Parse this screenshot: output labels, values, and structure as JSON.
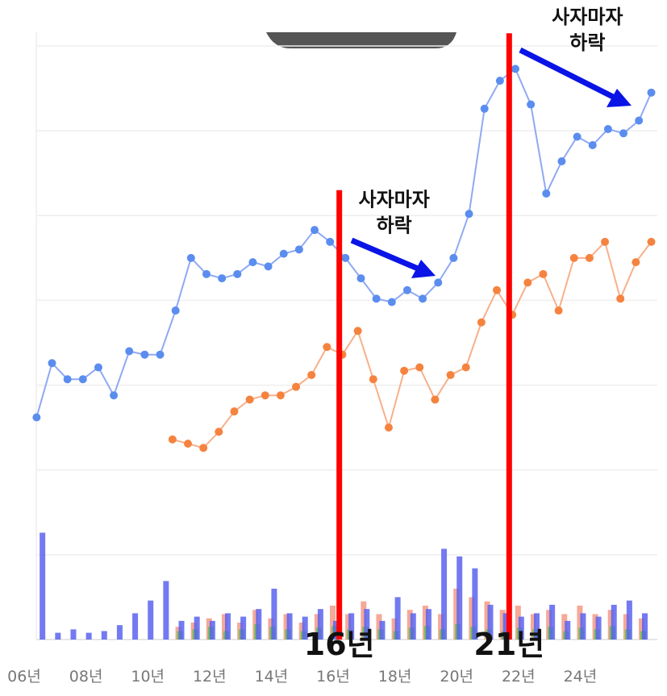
{
  "chart_data": {
    "type": "line",
    "xticks": [
      {
        "value": 2006,
        "label": "06년"
      },
      {
        "value": 2008,
        "label": "08년"
      },
      {
        "value": 2010,
        "label": "10년"
      },
      {
        "value": 2012,
        "label": "12년"
      },
      {
        "value": 2014,
        "label": "14년"
      },
      {
        "value": 2016,
        "label": "16년"
      },
      {
        "value": 2018,
        "label": "18년"
      },
      {
        "value": 2020,
        "label": "20년"
      },
      {
        "value": 2022,
        "label": "22년"
      },
      {
        "value": 2024,
        "label": "24년"
      }
    ],
    "xlim": [
      2005.6,
      2026.6
    ],
    "ylim": [
      0,
      7
    ],
    "ygrid": [
      0,
      1,
      2,
      3,
      4,
      5,
      6,
      7
    ],
    "series": [
      {
        "color": "#5b8def",
        "line_color": "#8fa9f3",
        "x": [
          2006.4,
          2006.9,
          2007.4,
          2007.9,
          2008.4,
          2008.9,
          2009.4,
          2009.9,
          2010.4,
          2010.9,
          2011.4,
          2011.9,
          2012.4,
          2012.9,
          2013.4,
          2013.9,
          2014.4,
          2014.9,
          2015.4,
          2015.9,
          2016.4,
          2016.9,
          2017.4,
          2017.9,
          2018.4,
          2018.9,
          2019.4,
          2019.9,
          2020.4,
          2020.9,
          2021.4,
          2021.9,
          2022.4,
          2022.9,
          2023.4,
          2023.9,
          2024.4,
          2024.9,
          2025.4,
          2025.9,
          2026.3
        ],
        "values": [
          2.62,
          3.26,
          3.07,
          3.07,
          3.21,
          2.88,
          3.4,
          3.36,
          3.36,
          3.88,
          4.5,
          4.31,
          4.26,
          4.31,
          4.45,
          4.4,
          4.55,
          4.6,
          4.83,
          4.69,
          4.5,
          4.26,
          4.02,
          3.98,
          4.12,
          4.02,
          4.21,
          4.5,
          5.02,
          6.26,
          6.59,
          6.73,
          6.31,
          5.26,
          5.64,
          5.93,
          5.83,
          6.02,
          5.97,
          6.12,
          6.45
        ]
      },
      {
        "color": "#f5833f",
        "line_color": "#f7b08a",
        "x": [
          2010.8,
          2011.3,
          2011.8,
          2012.3,
          2012.8,
          2013.3,
          2013.8,
          2014.3,
          2014.8,
          2015.3,
          2015.8,
          2016.3,
          2016.8,
          2017.3,
          2017.8,
          2018.3,
          2018.8,
          2019.3,
          2019.8,
          2020.3,
          2020.8,
          2021.3,
          2021.8,
          2022.3,
          2022.8,
          2023.3,
          2023.8,
          2024.3,
          2024.8,
          2025.3,
          2025.8,
          2026.3
        ],
        "values": [
          2.36,
          2.31,
          2.26,
          2.45,
          2.69,
          2.83,
          2.88,
          2.88,
          2.98,
          3.12,
          3.45,
          3.36,
          3.64,
          3.07,
          2.5,
          3.17,
          3.21,
          2.83,
          3.12,
          3.21,
          3.74,
          4.12,
          3.83,
          4.21,
          4.31,
          3.88,
          4.5,
          4.5,
          4.69,
          4.02,
          4.45,
          4.69
        ]
      }
    ],
    "bars": [
      {
        "color": "#f39a86",
        "x": [
          2011,
          2011.5,
          2012,
          2012.5,
          2013,
          2013.5,
          2014,
          2014.5,
          2015,
          2015.5,
          2016,
          2016.5,
          2017,
          2017.5,
          2018,
          2018.5,
          2019,
          2019.5,
          2020,
          2020.5,
          2021,
          2021.5,
          2022,
          2022.5,
          2023,
          2023.5,
          2024,
          2024.5,
          2025,
          2025.5,
          2026
        ],
        "values": [
          0.15,
          0.2,
          0.25,
          0.3,
          0.2,
          0.35,
          0.25,
          0.3,
          0.2,
          0.3,
          0.4,
          0.3,
          0.45,
          0.3,
          0.25,
          0.35,
          0.4,
          0.3,
          0.6,
          0.5,
          0.45,
          0.35,
          0.4,
          0.3,
          0.35,
          0.3,
          0.4,
          0.3,
          0.35,
          0.3,
          0.25
        ]
      },
      {
        "color": "#5fc24a",
        "x": [
          2011,
          2011.5,
          2012,
          2012.5,
          2013,
          2013.5,
          2014,
          2014.5,
          2015,
          2015.5,
          2016,
          2016.5,
          2017,
          2017.5,
          2018,
          2018.5,
          2019,
          2019.5,
          2020,
          2020.5,
          2021,
          2021.5,
          2022,
          2022.5,
          2023,
          2023.5,
          2024,
          2024.5,
          2025,
          2025.5,
          2026
        ],
        "values": [
          0.1,
          0.12,
          0.15,
          0.1,
          0.12,
          0.18,
          0.15,
          0.12,
          0.1,
          0.14,
          0.16,
          0.12,
          0.15,
          0.12,
          0.1,
          0.14,
          0.16,
          0.12,
          0.18,
          0.15,
          0.12,
          0.1,
          0.14,
          0.12,
          0.15,
          0.1,
          0.14,
          0.12,
          0.16,
          0.12,
          0.1
        ]
      },
      {
        "color": "#5b63ee",
        "x": [
          2006.5,
          2007,
          2007.5,
          2008,
          2008.5,
          2009,
          2009.5,
          2010,
          2010.5,
          2011,
          2011.5,
          2012,
          2012.5,
          2013,
          2013.5,
          2014,
          2014.5,
          2015,
          2015.5,
          2016,
          2016.5,
          2017,
          2017.5,
          2018,
          2018.5,
          2019,
          2019.5,
          2020,
          2020.5,
          2021,
          2021.5,
          2022,
          2022.5,
          2023,
          2023.5,
          2024,
          2024.5,
          2025,
          2025.5,
          2026
        ],
        "values": [
          1.26,
          0.08,
          0.12,
          0.08,
          0.1,
          0.17,
          0.31,
          0.46,
          0.69,
          0.22,
          0.27,
          0.22,
          0.31,
          0.27,
          0.36,
          0.6,
          0.31,
          0.27,
          0.36,
          0.22,
          0.31,
          0.36,
          0.22,
          0.5,
          0.31,
          0.36,
          1.07,
          0.98,
          0.84,
          0.41,
          0.31,
          0.27,
          0.31,
          0.41,
          0.22,
          0.31,
          0.27,
          0.41,
          0.46,
          0.31
        ]
      }
    ],
    "annotations": [
      {
        "x": 2016.2,
        "top": 5.3,
        "label": "16년",
        "note": [
          "사자마자",
          "하락"
        ]
      },
      {
        "x": 2021.7,
        "top": 7.15,
        "label": "21년",
        "note": [
          "사자마자",
          "하락"
        ]
      }
    ]
  }
}
